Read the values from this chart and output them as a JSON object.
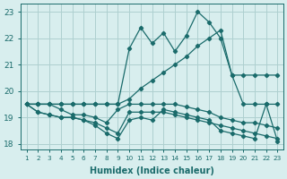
{
  "xlabel": "Humidex (Indice chaleur)",
  "background_color": "#d8eeee",
  "grid_color": "#aed0d0",
  "line_color": "#1a6b6b",
  "x": [
    1,
    2,
    3,
    4,
    5,
    6,
    7,
    8,
    9,
    10,
    11,
    12,
    13,
    14,
    15,
    16,
    17,
    18,
    19,
    20,
    21,
    22,
    23
  ],
  "line_main": [
    19.5,
    19.5,
    19.5,
    19.5,
    19.5,
    19.5,
    19.5,
    19.5,
    19.5,
    21.6,
    22.4,
    21.8,
    22.2,
    21.5,
    22.1,
    23.0,
    22.6,
    22.0,
    20.6,
    19.5,
    19.5,
    19.5,
    19.5
  ],
  "line_up": [
    19.5,
    19.5,
    19.5,
    19.5,
    19.5,
    19.5,
    19.5,
    19.5,
    19.5,
    19.7,
    20.1,
    20.4,
    20.7,
    21.0,
    21.3,
    21.7,
    22.0,
    22.3,
    20.6,
    20.6,
    20.6,
    20.6,
    20.6
  ],
  "line_mid1": [
    19.5,
    19.5,
    19.5,
    19.3,
    19.1,
    19.1,
    19.0,
    18.8,
    19.3,
    19.5,
    19.5,
    19.5,
    19.5,
    19.5,
    19.4,
    19.3,
    19.2,
    19.0,
    18.9,
    18.8,
    18.8,
    18.7,
    18.6
  ],
  "line_mid2": [
    19.5,
    19.2,
    19.1,
    19.0,
    19.0,
    18.9,
    18.8,
    18.6,
    18.4,
    19.2,
    19.2,
    19.2,
    19.2,
    19.1,
    19.0,
    18.9,
    18.8,
    18.7,
    18.6,
    18.5,
    18.4,
    18.3,
    18.2
  ],
  "line_low": [
    19.5,
    19.2,
    19.1,
    19.0,
    19.0,
    18.9,
    18.7,
    18.4,
    18.2,
    18.9,
    19.0,
    18.9,
    19.3,
    19.2,
    19.1,
    19.0,
    18.9,
    18.5,
    18.4,
    18.3,
    18.2,
    19.5,
    18.1
  ],
  "ylim": [
    17.8,
    23.3
  ],
  "yticks": [
    18,
    19,
    20,
    21,
    22,
    23
  ],
  "xticks": [
    1,
    2,
    3,
    4,
    5,
    6,
    7,
    8,
    9,
    10,
    11,
    12,
    13,
    14,
    15,
    16,
    17,
    18,
    19,
    20,
    21,
    22,
    23
  ]
}
